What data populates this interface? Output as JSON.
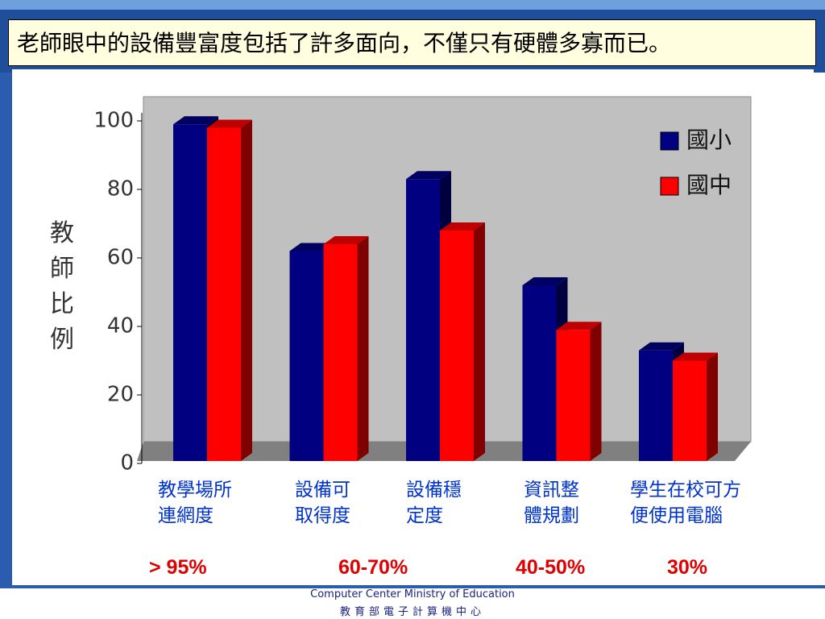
{
  "slide_title": "老師眼中的設備豐富度包括了許多面向，不僅只有硬體多寡而已。",
  "chart_data": {
    "type": "bar3d",
    "y_label": "教師比例",
    "categories": [
      "教學場所\n連網度",
      "設備可\n取得度",
      "設備穩\n定度",
      "資訊整\n體規劃",
      "學生在校可方\n便使用電腦"
    ],
    "series": [
      {
        "name": "國小",
        "color": "#000080",
        "values": [
          99,
          62,
          83,
          52,
          33
        ]
      },
      {
        "name": "國中",
        "color": "#ff0000",
        "values": [
          98,
          64,
          68,
          39,
          30
        ]
      }
    ],
    "ylim": [
      0,
      100
    ],
    "yticks": [
      0,
      20,
      40,
      60,
      80,
      100
    ],
    "legend": "right",
    "annotations": [
      "> 95%",
      "60-70%",
      "40-50%",
      "30%"
    ]
  },
  "footer": {
    "line1": "Computer Center Ministry of Education",
    "line2": "教育部電子計算機中心"
  }
}
